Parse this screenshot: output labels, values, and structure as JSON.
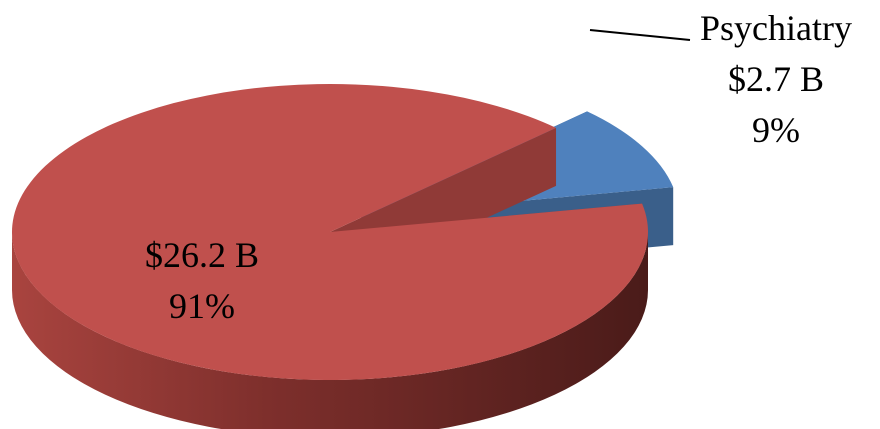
{
  "chart_data": {
    "type": "pie",
    "style": "3d-exploded",
    "title": "",
    "slices": [
      {
        "category": "",
        "value": 26.2,
        "value_label": "$26.2 B",
        "percent": 91,
        "percent_label": "91%",
        "color": "#C0504D",
        "exploded": false
      },
      {
        "category": "Psychiatry",
        "value": 2.7,
        "value_label": "$2.7 B",
        "percent": 9,
        "percent_label": "9%",
        "color": "#4F81BD",
        "exploded": true
      }
    ],
    "units": "B",
    "legend": "none",
    "data_labels": "category, value, percent"
  }
}
